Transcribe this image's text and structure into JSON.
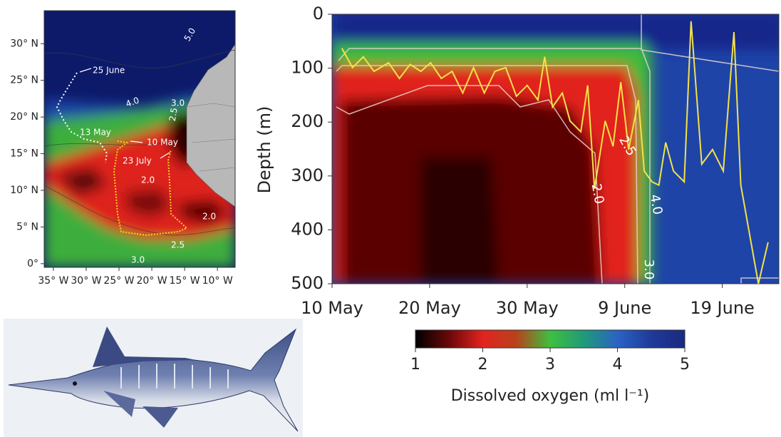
{
  "chart_data": [
    {
      "type": "map",
      "xlim": [
        -36.4,
        -7.3
      ],
      "ylim": [
        -0.5,
        34.5
      ],
      "xticks": [
        {
          "value": -35,
          "label": "35° W"
        },
        {
          "value": -30,
          "label": "30° W"
        },
        {
          "value": -25,
          "label": "25° W"
        },
        {
          "value": -20,
          "label": "20° W"
        },
        {
          "value": -15,
          "label": "15° W"
        },
        {
          "value": -10,
          "label": "10° W"
        }
      ],
      "yticks": [
        {
          "value": 0,
          "label": "0°"
        },
        {
          "value": 5,
          "label": "5° N"
        },
        {
          "value": 10,
          "label": "10° N"
        },
        {
          "value": 15,
          "label": "15° N"
        },
        {
          "value": 20,
          "label": "20° N"
        },
        {
          "value": 25,
          "label": "25° N"
        },
        {
          "value": 30,
          "label": "30° N"
        }
      ],
      "annotations": [
        "25 June",
        "13 May",
        "10 May",
        "23 July",
        "5.0",
        "4.0",
        "3.0",
        "2.5",
        "2.0",
        "2.0",
        "2.5",
        "3.0"
      ]
    },
    {
      "type": "heatmap",
      "ylabel": "Depth (m)",
      "xlim": [
        0,
        45.8
      ],
      "ylim": [
        500,
        0
      ],
      "xticks": [
        {
          "value": 0,
          "label": "10 May"
        },
        {
          "value": 10,
          "label": "20 May"
        },
        {
          "value": 20,
          "label": "30 May"
        },
        {
          "value": 30,
          "label": "9 June"
        },
        {
          "value": 40,
          "label": "19 June"
        }
      ],
      "yticks": [
        0,
        100,
        200,
        300,
        400,
        500
      ],
      "track": {
        "color": "#f2e24a",
        "x": [
          1.0,
          2.1,
          3.2,
          4.3,
          5.8,
          6.9,
          8.0,
          9.1,
          10.1,
          11.2,
          12.3,
          13.4,
          14.5,
          15.6,
          16.7,
          17.8,
          18.9,
          20.0,
          21.1,
          21.8,
          22.6,
          23.6,
          24.4,
          25.5,
          26.2,
          26.9,
          28.0,
          28.8,
          29.6,
          30.4,
          31.4,
          32.0,
          32.8,
          33.5,
          34.2,
          35.0,
          36.1,
          36.8,
          37.9,
          39.0,
          40.1,
          41.2,
          41.9,
          43.7,
          44.7
        ],
        "values": [
          63,
          99,
          79,
          106,
          90,
          119,
          93,
          106,
          90,
          119,
          106,
          146,
          99,
          146,
          106,
          99,
          152,
          132,
          159,
          79,
          172,
          146,
          198,
          218,
          132,
          324,
          198,
          245,
          126,
          251,
          159,
          291,
          311,
          317,
          238,
          291,
          311,
          13,
          278,
          251,
          291,
          33,
          317,
          500,
          423
        ]
      },
      "annotations": [
        "2.5",
        "2.0",
        "4.0",
        "3.0"
      ],
      "colorbar": {
        "lim": [
          1,
          5
        ],
        "ticks": [
          1,
          2,
          3,
          4,
          5
        ],
        "label": "Dissolved oxygen (ml l⁻¹)",
        "colors": [
          "#000000",
          "#6a0808",
          "#e2231f",
          "#b8421c",
          "#3fbf3f",
          "#1f9a7a",
          "#2a63c4",
          "#1f3a9a",
          "#1a2a80"
        ]
      }
    }
  ]
}
